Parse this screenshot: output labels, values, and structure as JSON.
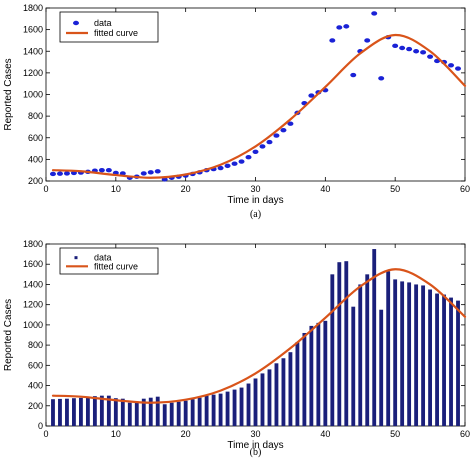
{
  "chart_data": [
    {
      "panel_label": "(a)",
      "type": "scatter",
      "xlabel": "Time in days",
      "ylabel": "Reported Cases",
      "xlim": [
        0,
        60
      ],
      "ylim": [
        200,
        1800
      ],
      "xticks": [
        0,
        10,
        20,
        30,
        40,
        50,
        60
      ],
      "yticks": [
        200,
        400,
        600,
        800,
        1000,
        1200,
        1400,
        1600,
        1800
      ],
      "grid": false,
      "legend_position": "top-left",
      "series": [
        {
          "name": "data",
          "style": "markers",
          "color": "#1a22d6",
          "x": [
            1,
            2,
            3,
            4,
            5,
            6,
            7,
            8,
            9,
            10,
            11,
            12,
            13,
            14,
            15,
            16,
            17,
            18,
            19,
            20,
            21,
            22,
            23,
            24,
            25,
            26,
            27,
            28,
            29,
            30,
            31,
            32,
            33,
            34,
            35,
            36,
            37,
            38,
            39,
            40,
            41,
            42,
            43,
            44,
            45,
            46,
            47,
            48,
            49,
            50,
            51,
            52,
            53,
            54,
            55,
            56,
            57,
            58,
            59
          ],
          "values": [
            265,
            268,
            270,
            275,
            278,
            285,
            295,
            300,
            300,
            275,
            270,
            230,
            240,
            270,
            280,
            290,
            215,
            230,
            240,
            250,
            265,
            280,
            300,
            310,
            320,
            340,
            360,
            380,
            420,
            470,
            520,
            560,
            620,
            670,
            730,
            830,
            920,
            990,
            1020,
            1040,
            1500,
            1620,
            1630,
            1180,
            1400,
            1500,
            1750,
            1150,
            1530,
            1450,
            1430,
            1420,
            1400,
            1390,
            1350,
            1310,
            1300,
            1270,
            1240
          ]
        },
        {
          "name": "fitted curve",
          "style": "line",
          "color": "#d9541a",
          "x": [
            1,
            5,
            10,
            15,
            20,
            25,
            30,
            35,
            40,
            45,
            50,
            55,
            60
          ],
          "values": [
            300,
            290,
            255,
            230,
            260,
            350,
            520,
            770,
            1070,
            1380,
            1550,
            1400,
            1080
          ]
        }
      ]
    },
    {
      "panel_label": "(b)",
      "type": "bar",
      "xlabel": "Time in days",
      "ylabel": "Reported Cases",
      "xlim": [
        0,
        60
      ],
      "ylim": [
        0,
        1800
      ],
      "xticks": [
        0,
        10,
        20,
        30,
        40,
        50,
        60
      ],
      "yticks": [
        0,
        200,
        400,
        600,
        800,
        1000,
        1200,
        1400,
        1600,
        1800
      ],
      "grid": false,
      "legend_position": "top-left",
      "series": [
        {
          "name": "data",
          "style": "bars",
          "color": "#1a1f7a",
          "x": [
            1,
            2,
            3,
            4,
            5,
            6,
            7,
            8,
            9,
            10,
            11,
            12,
            13,
            14,
            15,
            16,
            17,
            18,
            19,
            20,
            21,
            22,
            23,
            24,
            25,
            26,
            27,
            28,
            29,
            30,
            31,
            32,
            33,
            34,
            35,
            36,
            37,
            38,
            39,
            40,
            41,
            42,
            43,
            44,
            45,
            46,
            47,
            48,
            49,
            50,
            51,
            52,
            53,
            54,
            55,
            56,
            57,
            58,
            59
          ],
          "values": [
            265,
            268,
            270,
            275,
            278,
            285,
            295,
            300,
            300,
            275,
            270,
            230,
            240,
            270,
            280,
            290,
            215,
            230,
            240,
            250,
            265,
            280,
            300,
            310,
            320,
            340,
            360,
            380,
            420,
            470,
            520,
            560,
            620,
            670,
            730,
            830,
            920,
            990,
            1020,
            1040,
            1500,
            1620,
            1630,
            1180,
            1400,
            1500,
            1750,
            1150,
            1530,
            1450,
            1430,
            1420,
            1400,
            1390,
            1350,
            1310,
            1300,
            1270,
            1240
          ]
        },
        {
          "name": "fitted curve",
          "style": "line",
          "color": "#d9541a",
          "x": [
            1,
            5,
            10,
            15,
            20,
            25,
            30,
            35,
            40,
            45,
            50,
            55,
            60
          ],
          "values": [
            300,
            290,
            255,
            230,
            260,
            350,
            520,
            770,
            1070,
            1380,
            1550,
            1400,
            1080
          ]
        }
      ]
    }
  ]
}
